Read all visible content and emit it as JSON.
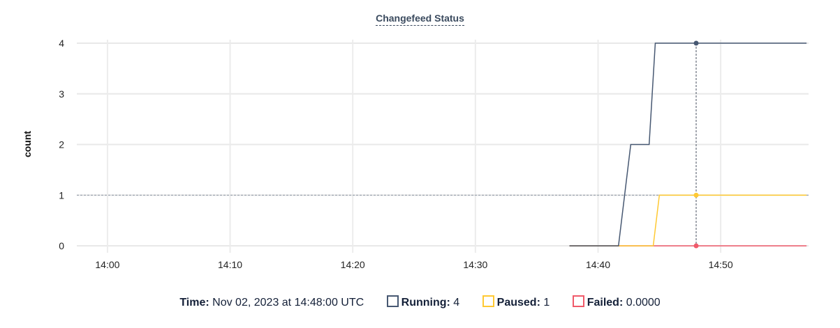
{
  "chart_data": {
    "type": "line",
    "title": "Changefeed Status",
    "ylabel": "count",
    "xlabel": "",
    "ylim": [
      0,
      4
    ],
    "xlim": [
      "13:57:30",
      "14:57:10"
    ],
    "yticks": [
      0,
      1,
      2,
      3,
      4
    ],
    "xticks": [
      "14:00",
      "14:10",
      "14:20",
      "14:30",
      "14:40",
      "14:50"
    ],
    "grid": true,
    "series": [
      {
        "name": "Running",
        "color": "#475872",
        "points": [
          [
            "14:37:40",
            0
          ],
          [
            "14:41:40",
            0
          ],
          [
            "14:42:40",
            2
          ],
          [
            "14:44:10",
            2
          ],
          [
            "14:44:40",
            4
          ],
          [
            "14:57:00",
            4
          ]
        ]
      },
      {
        "name": "Paused",
        "color": "#ffc933",
        "points": [
          [
            "14:37:40",
            0
          ],
          [
            "14:44:30",
            0
          ],
          [
            "14:45:00",
            1
          ],
          [
            "14:57:00",
            1
          ]
        ]
      },
      {
        "name": "Failed",
        "color": "#f05a6a",
        "points": [
          [
            "14:37:40",
            0
          ],
          [
            "14:57:00",
            0
          ]
        ]
      }
    ],
    "hover": {
      "time": "14:48:00",
      "reference_y": 1
    }
  },
  "legend": {
    "time_label": "Time:",
    "time_value": "Nov 02, 2023 at 14:48:00 UTC",
    "items": [
      {
        "label": "Running:",
        "value": "4",
        "color": "#475872"
      },
      {
        "label": "Paused:",
        "value": "1",
        "color": "#ffc933"
      },
      {
        "label": "Failed:",
        "value": "0.0000",
        "color": "#f05a6a"
      }
    ]
  }
}
